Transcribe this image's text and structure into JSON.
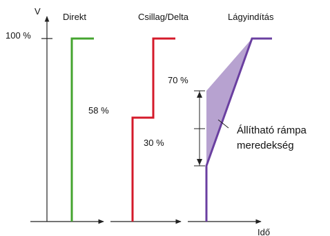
{
  "axis": {
    "y_label": "V",
    "x_label": "Idő",
    "y_tick_label": "100 %"
  },
  "methods": {
    "direct": {
      "title": "Direkt",
      "value_label": "58 %",
      "color": "#44a42f"
    },
    "star_delta": {
      "title": "Csillag/Delta",
      "low_label": "30 %",
      "high_label": "70 %",
      "color": "#d41a2a"
    },
    "soft_start": {
      "title": "Lágyindítás",
      "annotation_line1": "Állítható rámpa",
      "annotation_line2": "meredekség",
      "color": "#6a3fa0",
      "fill_color": "#b7a2d0"
    }
  },
  "style": {
    "axis_color": "#222222"
  }
}
